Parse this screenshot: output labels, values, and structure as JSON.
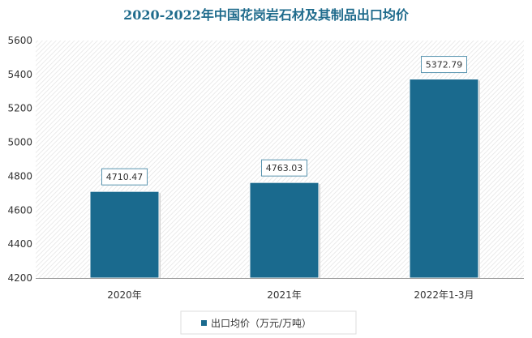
{
  "chart_data": {
    "type": "bar",
    "title": "2020-2022年中国花岗岩石材及其制品出口均价",
    "categories": [
      "2020年",
      "2021年",
      "2022年1-3月"
    ],
    "series": [
      {
        "name": "出口均价（万元/万吨）",
        "values": [
          4710.47,
          4763.03,
          5372.79
        ]
      }
    ],
    "data_labels": [
      "4710.47",
      "4763.03",
      "5372.79"
    ],
    "ylim": [
      4200,
      5600
    ],
    "yticks": [
      4200,
      4400,
      4600,
      4800,
      5000,
      5200,
      5400,
      5600
    ],
    "grid": false,
    "legend": "bottom",
    "colors": {
      "bar": "#1a6a8e",
      "title": "#1f6b8c"
    }
  }
}
